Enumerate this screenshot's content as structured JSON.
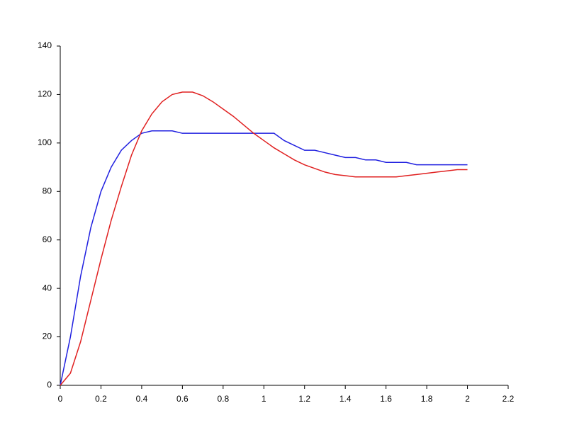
{
  "chart_data": {
    "type": "line",
    "x": [
      0,
      0.05,
      0.1,
      0.15,
      0.2,
      0.25,
      0.3,
      0.35,
      0.4,
      0.45,
      0.5,
      0.55,
      0.6,
      0.65,
      0.7,
      0.75,
      0.8,
      0.85,
      0.9,
      0.95,
      1.0,
      1.05,
      1.1,
      1.15,
      1.2,
      1.25,
      1.3,
      1.35,
      1.4,
      1.45,
      1.5,
      1.55,
      1.6,
      1.65,
      1.7,
      1.75,
      1.8,
      1.85,
      1.9,
      1.95,
      2.0
    ],
    "series": [
      {
        "color": "#2020e0",
        "values": [
          0,
          20,
          45,
          65,
          80,
          90,
          97,
          101,
          104,
          105,
          105,
          105,
          104,
          104,
          104,
          104,
          104,
          104,
          104,
          104,
          104,
          104,
          101,
          99,
          97,
          97,
          96,
          95,
          94,
          94,
          93,
          93,
          92,
          92,
          92,
          91,
          91,
          91,
          91,
          91,
          91
        ]
      },
      {
        "color": "#e02020",
        "values": [
          0,
          5,
          18,
          35,
          52,
          68,
          82,
          95,
          105,
          112,
          117,
          120,
          121,
          121,
          119.5,
          117,
          114,
          111,
          107.5,
          104,
          101,
          98,
          95.5,
          93,
          91,
          89.5,
          88,
          87,
          86.5,
          86,
          86,
          86,
          86,
          86,
          86.5,
          87,
          87.5,
          88,
          88.5,
          89,
          89
        ]
      }
    ],
    "xlim": [
      0,
      2.2
    ],
    "xticks": [
      0,
      0.2,
      0.4,
      0.6,
      0.8,
      1,
      1.2,
      1.4,
      1.6,
      1.8,
      2,
      2.2
    ],
    "ylim": [
      0,
      140
    ],
    "yticks": [
      0,
      20,
      40,
      60,
      80,
      100,
      120,
      140
    ]
  }
}
